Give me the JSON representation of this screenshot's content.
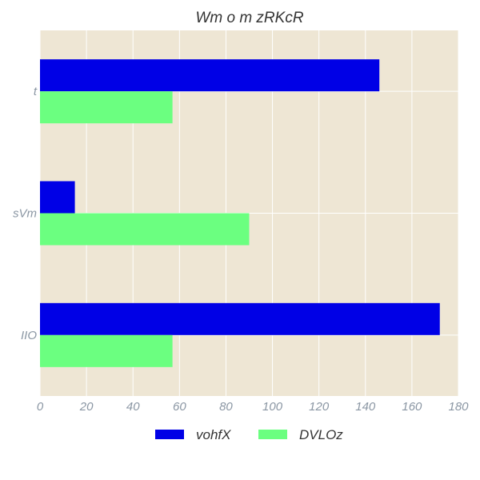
{
  "chart_data": {
    "type": "bar",
    "orientation": "horizontal",
    "title": "Wm  o m zRKcR",
    "categories": [
      "t",
      "sVm",
      "IIO"
    ],
    "series": [
      {
        "name": "vohfX",
        "values": [
          146,
          15,
          172
        ],
        "color": "#0000e6"
      },
      {
        "name": "DVLOz",
        "values": [
          57,
          90,
          57
        ],
        "color": "#6bff80"
      }
    ],
    "xlim": [
      0,
      180
    ],
    "xticks": [
      "0",
      "20",
      "40",
      "60",
      "80",
      "100",
      "120",
      "140",
      "160",
      "180"
    ],
    "xlabel": "",
    "ylabel": "",
    "grid": true,
    "legend_position": "bottom",
    "plot_background": "#eee6d4",
    "grid_color": "#ffffff"
  }
}
